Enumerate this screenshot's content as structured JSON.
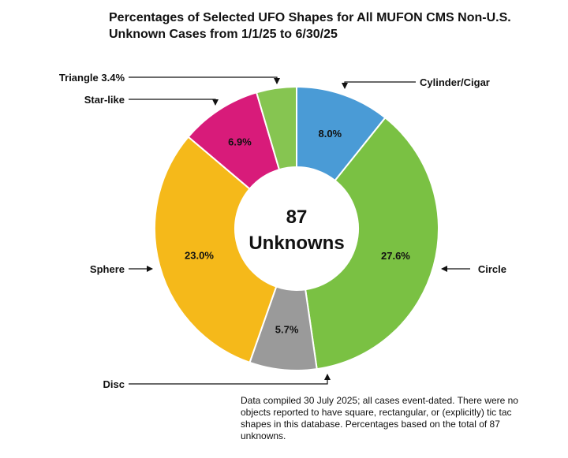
{
  "chart_data": {
    "type": "pie",
    "title_lines": [
      "Percentages of Selected UFO Shapes for All MUFON CMS Non-U.S.",
      "Unknown Cases from 1/1/25 to 6/30/25"
    ],
    "center_label": {
      "line1": "87",
      "line2": "Unknowns"
    },
    "slices": [
      {
        "name": "Cylinder/Cigar",
        "value": 8.0,
        "label": "8.0%",
        "color": "#4a9bd6"
      },
      {
        "name": "Circle",
        "value": 27.6,
        "label": "27.6%",
        "color": "#7ac143"
      },
      {
        "name": "Disc",
        "value": 5.7,
        "label": "5.7%",
        "color": "#9a9a9a"
      },
      {
        "name": "Sphere",
        "value": 23.0,
        "label": "23.0%",
        "color": "#f5b91a"
      },
      {
        "name": "Star-like",
        "value": 6.9,
        "label": "6.9%",
        "color": "#d81b7a",
        "label_color": "#e6e6e6"
      },
      {
        "name": "Triangle 3.4%",
        "value": 3.4,
        "label": "",
        "color": "#86c551"
      }
    ],
    "note": "Data compiled 30 July 2025; all cases event-dated. There were no objects reported to have square, rectangular, or (explicitly) tic tac shapes in this database. Percentages based on the total of 87 unknowns."
  }
}
